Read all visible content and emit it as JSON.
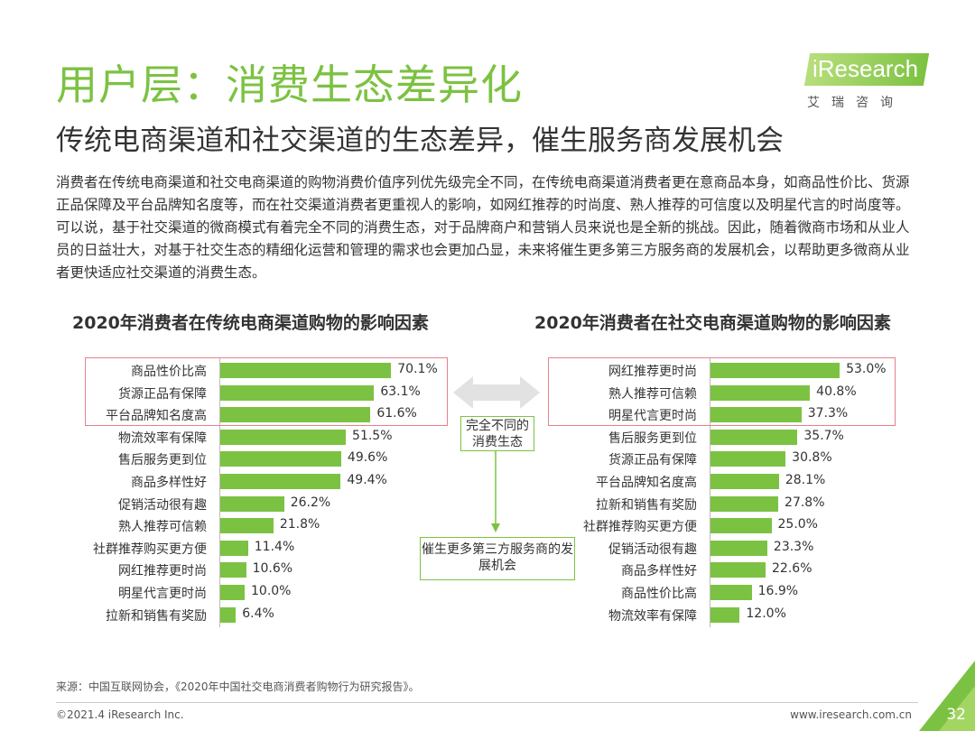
{
  "header": {
    "title": "用户层：消费生态差异化",
    "subtitle": "传统电商渠道和社交渠道的生态差异，催生服务商发展机会"
  },
  "logo": {
    "brand": "iResearch",
    "cn": "艾瑞咨询"
  },
  "body_text": "消费者在传统电商渠道和社交电商渠道的购物消费价值序列优先级完全不同，在传统电商渠道消费者更在意商品本身，如商品性价比、货源正品保障及平台品牌知名度等，而在社交渠道消费者更重视人的影响，如网红推荐的时尚度、熟人推荐的可信度以及明星代言的时尚度等。可以说，基于社交渠道的微商模式有着完全不同的消费生态，对于品牌商户和营销人员来说也是全新的挑战。因此，随着微商市场和从业人员的日益壮大，对基于社交生态的精细化运营和管理的需求也会更加凸显，未来将催生更多第三方服务商的发展机会，以帮助更多微商从业者更快适应社交渠道的消费生态。",
  "chart_data": [
    {
      "type": "bar",
      "orientation": "horizontal",
      "title": "2020年消费者在传统电商渠道购物的影响因素",
      "categories": [
        "商品性价比高",
        "货源正品有保障",
        "平台品牌知名度高",
        "物流效率有保障",
        "售后服务更到位",
        "商品多样性好",
        "促销活动很有趣",
        "熟人推荐可信赖",
        "社群推荐购买更方便",
        "网红推荐更时尚",
        "明星代言更时尚",
        "拉新和销售有奖励"
      ],
      "values": [
        70.1,
        63.1,
        61.6,
        51.5,
        49.6,
        49.4,
        26.2,
        21.8,
        11.4,
        10.6,
        10.0,
        6.4
      ],
      "labels": [
        "70.1%",
        "63.1%",
        "61.6%",
        "51.5%",
        "49.6%",
        "49.4%",
        "26.2%",
        "21.8%",
        "11.4%",
        "10.6%",
        "10.0%",
        "6.4%"
      ],
      "unit": "%",
      "highlighted_top": 3,
      "color": "#7cc242"
    },
    {
      "type": "bar",
      "orientation": "horizontal",
      "title": "2020年消费者在社交电商渠道购物的影响因素",
      "categories": [
        "网红推荐更时尚",
        "熟人推荐可信赖",
        "明星代言更时尚",
        "售后服务更到位",
        "货源正品有保障",
        "平台品牌知名度高",
        "拉新和销售有奖励",
        "社群推荐购买更方便",
        "促销活动很有趣",
        "商品多样性好",
        "商品性价比高",
        "物流效率有保障"
      ],
      "values": [
        53.0,
        40.8,
        37.3,
        35.7,
        30.8,
        28.1,
        27.8,
        25.0,
        23.3,
        22.6,
        16.9,
        12.0
      ],
      "labels": [
        "53.0%",
        "40.8%",
        "37.3%",
        "35.7%",
        "30.8%",
        "28.1%",
        "27.8%",
        "25.0%",
        "23.3%",
        "22.6%",
        "16.9%",
        "12.0%"
      ],
      "unit": "%",
      "highlighted_top": 3,
      "color": "#7cc242"
    }
  ],
  "callouts": {
    "middle": "完全不同的消费生态",
    "bottom": "催生更多第三方服务商的发展机会"
  },
  "footer": {
    "source": "来源：中国互联网协会，《2020年中国社交电商消费者购物行为研究报告》。",
    "copyright": "©2021.4 iResearch Inc.",
    "site": "www.iresearch.com.cn",
    "page": "32"
  }
}
